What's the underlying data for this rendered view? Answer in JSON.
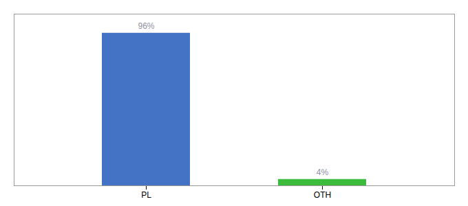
{
  "chart_data": {
    "type": "bar",
    "categories": [
      "PL",
      "OTH"
    ],
    "values": [
      96,
      4
    ],
    "value_labels": [
      "96%",
      "4%"
    ],
    "colors": [
      "#4472c4",
      "#3dbb3d"
    ],
    "ylim": [
      0,
      108
    ],
    "data_labels": true,
    "tick_labels": "x",
    "grid": false
  }
}
